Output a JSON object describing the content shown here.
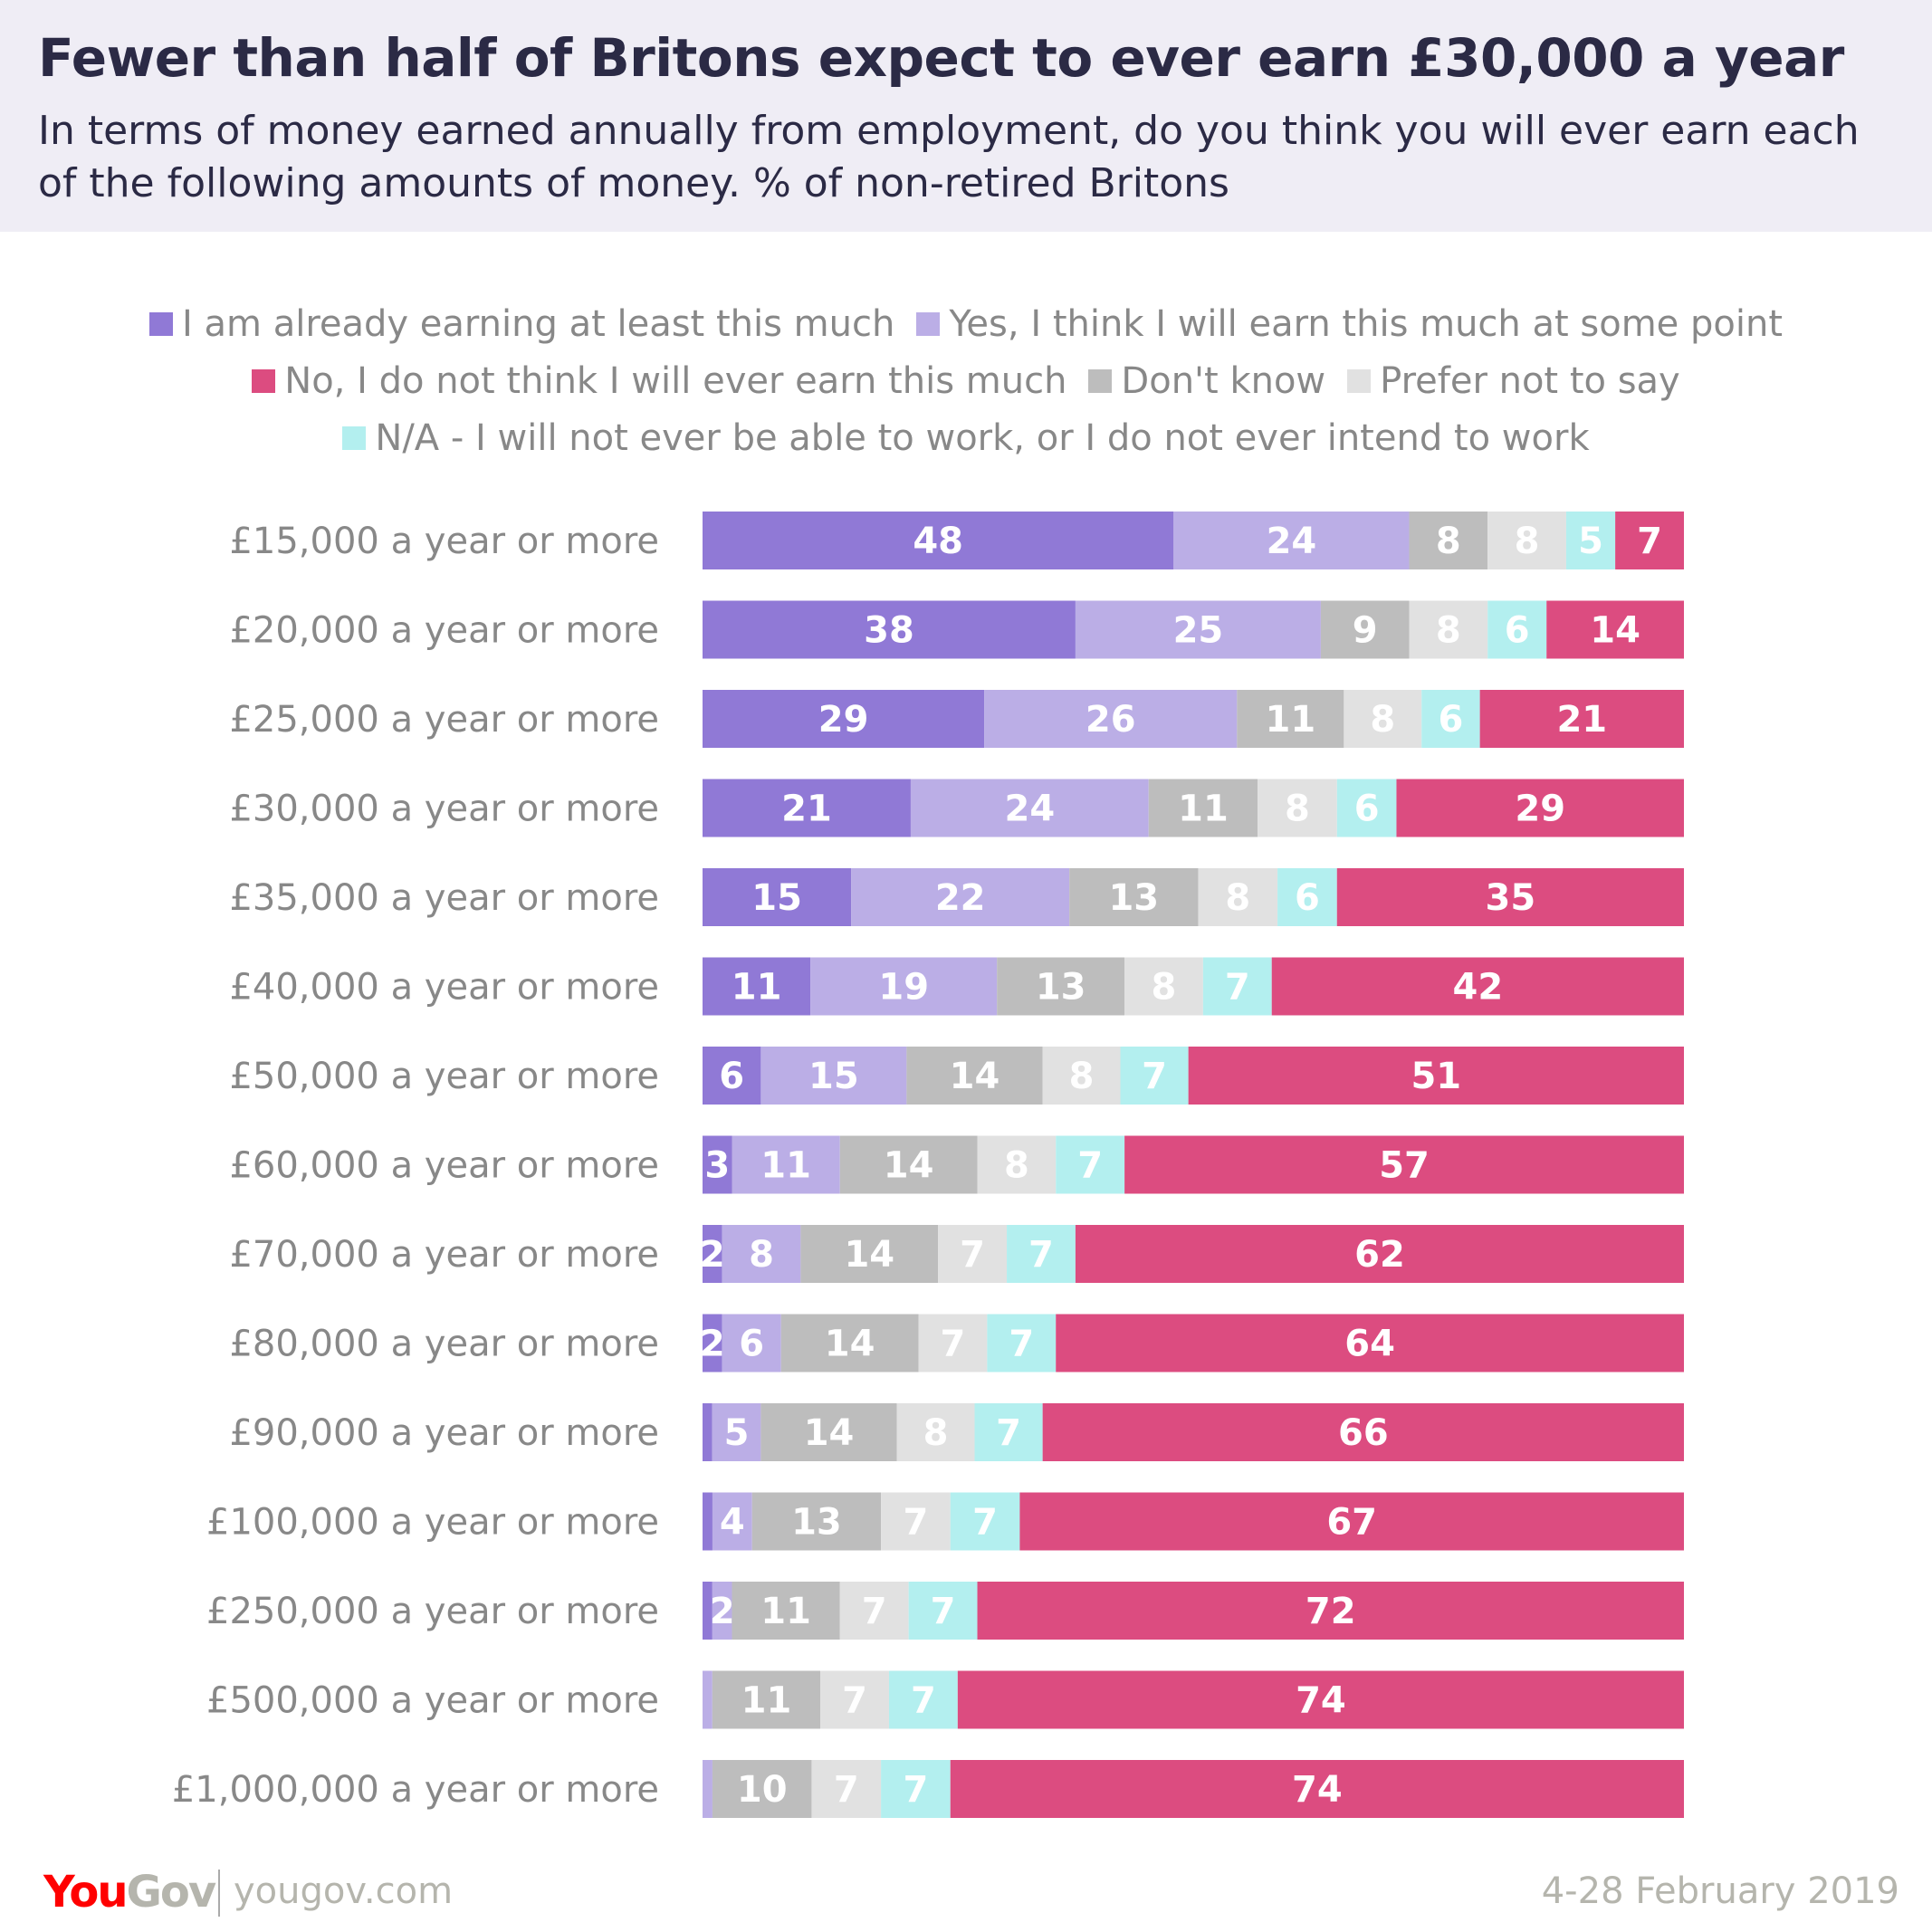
{
  "header": {
    "title": "Fewer than half of Britons expect to ever earn £30,000 a year",
    "subtitle": "In terms of money earned annually from employment, do you think you will ever earn each of the following amounts of money. % of non-retired Britons"
  },
  "footer": {
    "logo": "YouGov",
    "url": "yougov.com",
    "date": "4-28 February 2019"
  },
  "chart_data": {
    "type": "bar",
    "orientation": "horizontal",
    "stacked": true,
    "legend_position": "top",
    "categories": [
      "£15,000 a year or more",
      "£20,000 a year or more",
      "£25,000 a year or more",
      "£30,000 a year or more",
      "£35,000 a year or more",
      "£40,000 a year or more",
      "£50,000 a year or more",
      "£60,000 a year or more",
      "£70,000 a year or more",
      "£80,000 a year or more",
      "£90,000 a year or more",
      "£100,000 a year or more",
      "£250,000 a year or more",
      "£500,000 a year or more",
      "£1,000,000 a year or more"
    ],
    "series": [
      {
        "name": "I am already earning at least this much",
        "color": "#9079d6",
        "values": [
          48,
          38,
          29,
          21,
          15,
          11,
          6,
          3,
          2,
          2,
          1,
          1,
          1,
          0,
          0
        ]
      },
      {
        "name": "Yes, I think I will earn this much at some point",
        "color": "#bbaee6",
        "values": [
          24,
          25,
          26,
          24,
          22,
          19,
          15,
          11,
          8,
          6,
          5,
          4,
          2,
          1,
          1
        ]
      },
      {
        "name": "Don't know",
        "color": "#bdbdbd",
        "values": [
          8,
          9,
          11,
          11,
          13,
          13,
          14,
          14,
          14,
          14,
          14,
          13,
          11,
          11,
          10
        ]
      },
      {
        "name": "Prefer not to say",
        "color": "#e1e1e1",
        "values": [
          8,
          8,
          8,
          8,
          8,
          8,
          8,
          8,
          7,
          7,
          8,
          7,
          7,
          7,
          7
        ]
      },
      {
        "name": "N/A - I will not ever be able to work, or I do not ever intend to work",
        "color": "#b3efef",
        "values": [
          5,
          6,
          6,
          6,
          6,
          7,
          7,
          7,
          7,
          7,
          7,
          7,
          7,
          7,
          7
        ]
      },
      {
        "name": "No, I do not think I will ever earn this much",
        "color": "#dc4c80",
        "values": [
          7,
          14,
          21,
          29,
          35,
          42,
          51,
          57,
          62,
          64,
          66,
          67,
          72,
          74,
          74
        ]
      }
    ],
    "legend_order": [
      0,
      1,
      5,
      2,
      3,
      4
    ],
    "unlabeled_below": 2
  }
}
